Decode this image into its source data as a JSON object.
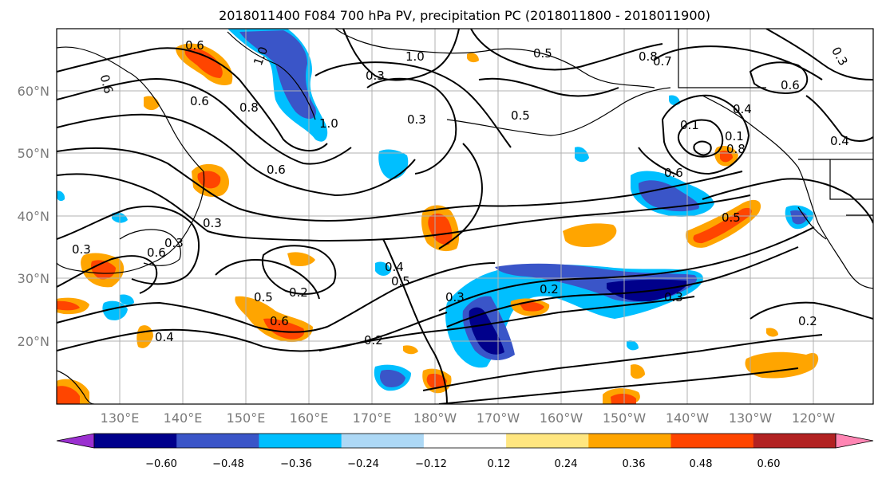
{
  "title": "2018011400 F084 700 hPa PV, precipitation PC (2018011800 - 2018011900)",
  "map": {
    "lat_labels": [
      "60°N",
      "50°N",
      "40°N",
      "30°N",
      "20°N"
    ],
    "lon_labels": [
      "130°E",
      "140°E",
      "150°E",
      "160°E",
      "170°E",
      "180°W",
      "170°W",
      "160°W",
      "150°W",
      "140°W",
      "130°W",
      "120°W"
    ],
    "contour_labels": [
      "0.6",
      "0.6",
      "0.6",
      "1.0",
      "1.0",
      "0.5",
      "0.5",
      "0.8",
      "0.7",
      "0.3",
      "0.6",
      "0.3",
      "0.4",
      "0.3",
      "0.6",
      "0.4",
      "0.1",
      "0.6",
      "0.3",
      "0.3",
      "0.6",
      "0.3",
      "0.5",
      "0.4",
      "0.2",
      "0.2",
      "0.3",
      "0.5",
      "0.5",
      "0.6",
      "0.2",
      "0.3",
      "0.2",
      "0.4",
      "0.8",
      "0.1",
      "0.8",
      "1.0"
    ],
    "land_color": "#000000",
    "grid": true
  },
  "colorbar": {
    "ticks": [
      "−0.60",
      "−0.48",
      "−0.36",
      "−0.24",
      "−0.12",
      "0.12",
      "0.24",
      "0.36",
      "0.48",
      "0.60"
    ],
    "colors": [
      "#9b30d0",
      "#00008b",
      "#3a55c8",
      "#00bfff",
      "#add8f5",
      "#ffffff",
      "#ffe680",
      "#ffa500",
      "#ff4500",
      "#b22222",
      "#ff85b3"
    ]
  }
}
